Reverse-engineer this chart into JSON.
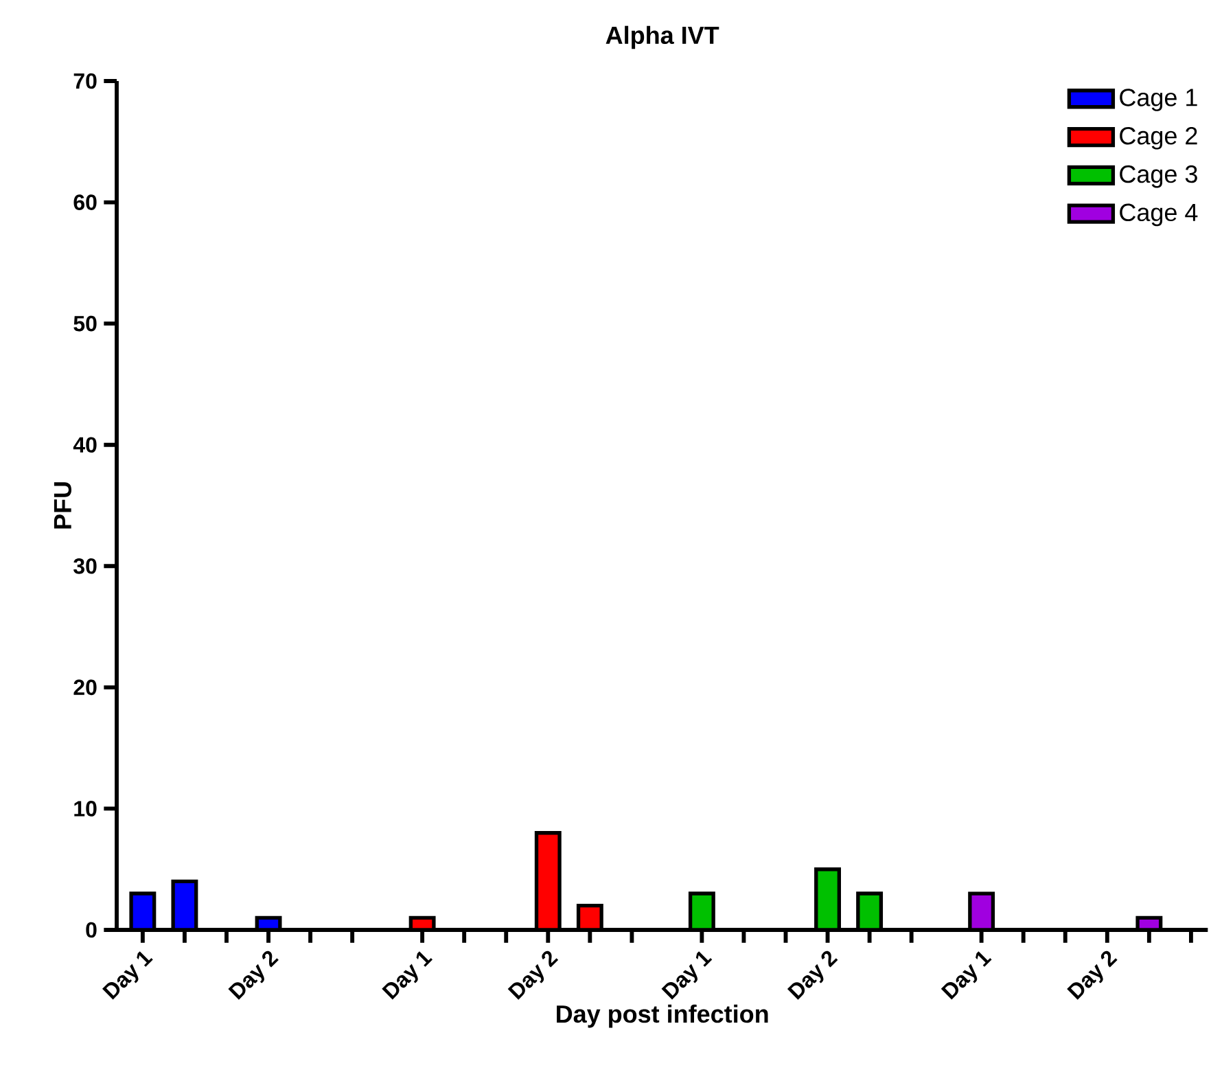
{
  "chart_data": {
    "type": "bar",
    "title": "Alpha IVT",
    "xlabel": "Day post infection",
    "ylabel": "PFU",
    "categories": [
      "Day 1",
      null,
      null,
      "Day 2",
      null,
      null,
      "Day 1",
      null,
      null,
      "Day 2",
      null,
      null,
      "Day 1",
      null,
      null,
      "Day 2",
      null,
      null,
      "Day 1",
      null,
      null,
      "Day 2",
      null,
      null
    ],
    "series": [
      {
        "name": "Cage 1",
        "color": "#0000ff",
        "values": [
          3,
          4,
          0,
          1,
          0,
          0,
          null,
          null,
          null,
          null,
          null,
          null,
          null,
          null,
          null,
          null,
          null,
          null,
          null,
          null,
          null,
          null,
          null,
          null
        ]
      },
      {
        "name": "Cage 2",
        "color": "#ff0000",
        "values": [
          null,
          null,
          null,
          null,
          null,
          null,
          1,
          0,
          0,
          8,
          2,
          0,
          null,
          null,
          null,
          null,
          null,
          null,
          null,
          null,
          null,
          null,
          null,
          null
        ]
      },
      {
        "name": "Cage 3",
        "color": "#00c000",
        "values": [
          null,
          null,
          null,
          null,
          null,
          null,
          null,
          null,
          null,
          null,
          null,
          null,
          3,
          0,
          0,
          5,
          3,
          0,
          null,
          null,
          null,
          null,
          null,
          null
        ]
      },
      {
        "name": "Cage 4",
        "color": "#a000e0",
        "values": [
          null,
          null,
          null,
          null,
          null,
          null,
          null,
          null,
          null,
          null,
          null,
          null,
          null,
          null,
          null,
          null,
          null,
          null,
          3,
          0,
          0,
          0,
          1,
          0
        ]
      }
    ],
    "ylim": [
      0,
      70
    ],
    "yticks": [
      0,
      10,
      20,
      30,
      40,
      50,
      60,
      70
    ],
    "grid": false,
    "legend": "top right"
  }
}
